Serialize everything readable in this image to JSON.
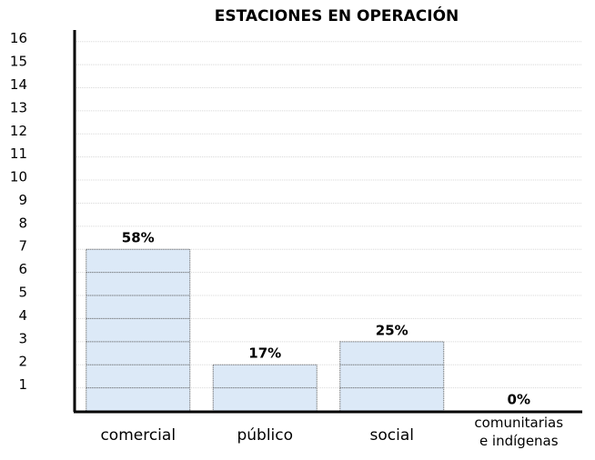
{
  "chart_data": {
    "type": "bar",
    "title": "ESTACIONES EN OPERACIÓN",
    "categories": [
      "comercial",
      "público",
      "social",
      "comunitarias e indígenas"
    ],
    "values": [
      7,
      2,
      3,
      0
    ],
    "shares": {
      "values": [
        58,
        17,
        25,
        0
      ],
      "value_labels": [
        "58%",
        "17%",
        "25%",
        "0%"
      ]
    },
    "color": "#dce9f7",
    "ylim": [
      0,
      16.5
    ],
    "yticks": [
      1,
      2,
      3,
      4,
      5,
      6,
      7,
      8,
      9,
      10,
      11,
      12,
      13,
      14,
      15,
      16
    ],
    "grid": true
  }
}
